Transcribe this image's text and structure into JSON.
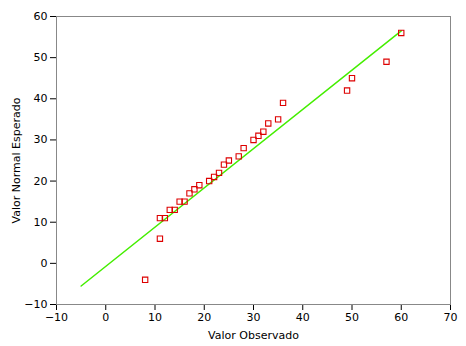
{
  "chart_data": {
    "type": "scatter",
    "xlabel": "Valor Observado",
    "ylabel": "Valor Normal Esperado",
    "xlim": [
      -10,
      70
    ],
    "ylim": [
      -10,
      60
    ],
    "xticks": [
      -10,
      0,
      10,
      20,
      30,
      40,
      50,
      60,
      70
    ],
    "yticks": [
      -10,
      0,
      10,
      20,
      30,
      40,
      50,
      60
    ],
    "grid": false,
    "series": [
      {
        "type": "line",
        "color": "#44ee00",
        "line_style": "solid",
        "x": [
          -5,
          60
        ],
        "values": [
          -5.5,
          56.5
        ]
      },
      {
        "type": "scatter",
        "color": "#dd0000",
        "marker": "square",
        "x": [
          8,
          11,
          11,
          12,
          13,
          14,
          15,
          16,
          17,
          18,
          19,
          21,
          22,
          23,
          24,
          25,
          27,
          28,
          30,
          31,
          32,
          33,
          35,
          36,
          49,
          50,
          57,
          60
        ],
        "values": [
          -4,
          6,
          11,
          11,
          13,
          13,
          15,
          15,
          17,
          18,
          19,
          20,
          21,
          22,
          24,
          25,
          26,
          28,
          30,
          31,
          32,
          34,
          35,
          39,
          42,
          45,
          49,
          56
        ]
      }
    ]
  }
}
